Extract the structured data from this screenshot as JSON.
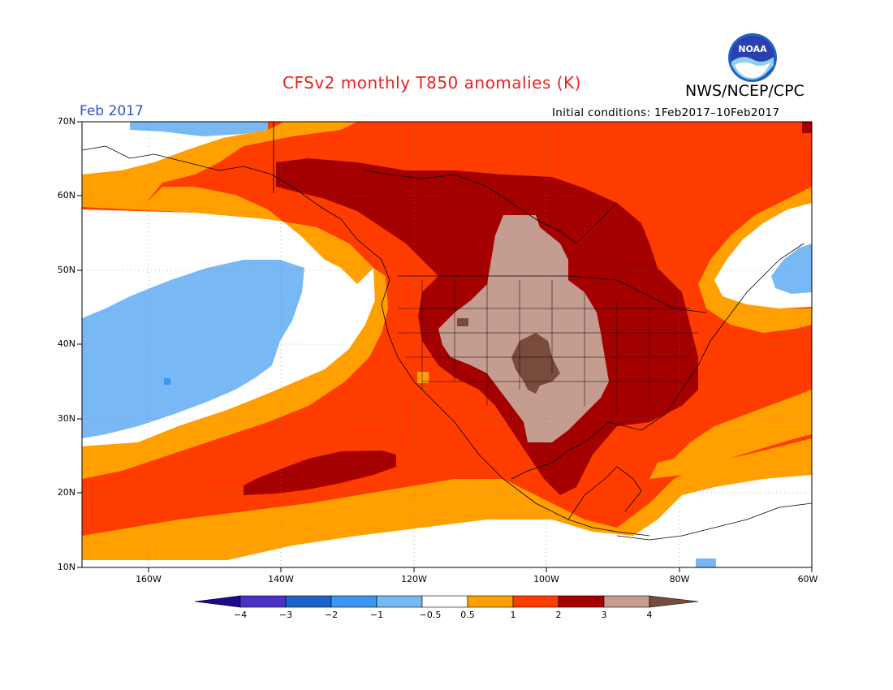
{
  "title": "CFSv2 monthly T850 anomalies (K)",
  "organization": "NWS/NCEP/CPC",
  "logo_text": "NOAA",
  "period": "Feb 2017",
  "initial_conditions": "Initial conditions: 1Feb2017–10Feb2017",
  "colors": {
    "title": "#e8231e",
    "period": "#3250c8",
    "lt_m4": "#1a0a8c",
    "m4_m3": "#4a32c8",
    "m3_m2": "#1e64c8",
    "m2_m1": "#3c96f0",
    "m1_m05": "#78b9f5",
    "m05_05": "#ffffff",
    "p05_1": "#ffa000",
    "p1_2": "#ff3c00",
    "p2_3": "#a50000",
    "p3_4": "#c49c90",
    "gt_4": "#784b3c"
  },
  "lat_labels": [
    "70N",
    "60N",
    "50N",
    "40N",
    "30N",
    "20N",
    "10N"
  ],
  "lon_labels": [
    "160W",
    "140W",
    "120W",
    "100W",
    "80W",
    "60W"
  ],
  "colorbar_labels": [
    "−4",
    "−3",
    "−2",
    "−1",
    "−0.5",
    "0.5",
    "1",
    "2",
    "3",
    "4"
  ]
}
